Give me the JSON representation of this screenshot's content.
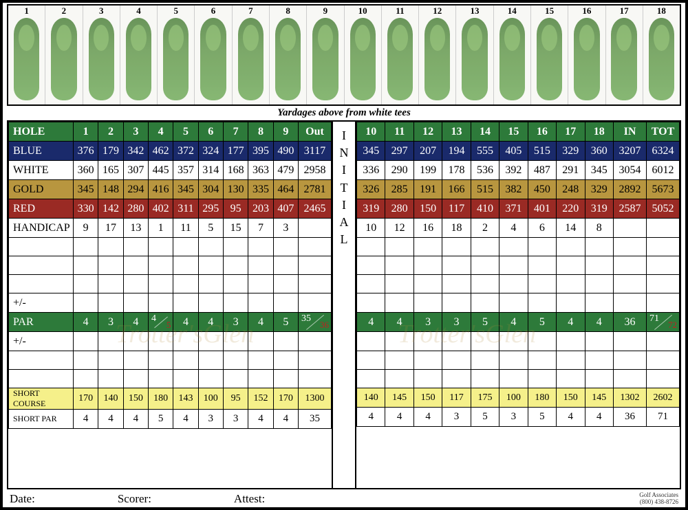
{
  "caption": "Yardages above from white tees",
  "initial_label": "INITIAL",
  "colors": {
    "green": "#2d7a3a",
    "blue": "#1a2a6b",
    "gold": "#b8963f",
    "red": "#9a2a24",
    "yellow": "#f5f08a",
    "black": "#000000",
    "white": "#ffffff",
    "split_red": "#c02020"
  },
  "front": {
    "columns": [
      "1",
      "2",
      "3",
      "4",
      "5",
      "6",
      "7",
      "8",
      "9",
      "Out"
    ],
    "rows": {
      "hole": {
        "label": "HOLE"
      },
      "blue": {
        "label": "BLUE",
        "vals": [
          "376",
          "179",
          "342",
          "462",
          "372",
          "324",
          "177",
          "395",
          "490",
          "3117"
        ]
      },
      "white": {
        "label": "WHITE",
        "vals": [
          "360",
          "165",
          "307",
          "445",
          "357",
          "314",
          "168",
          "363",
          "479",
          "2958"
        ]
      },
      "gold": {
        "label": "GOLD",
        "vals": [
          "345",
          "148",
          "294",
          "416",
          "345",
          "304",
          "130",
          "335",
          "464",
          "2781"
        ]
      },
      "red": {
        "label": "RED",
        "vals": [
          "330",
          "142",
          "280",
          "402",
          "311",
          "295",
          "95",
          "203",
          "407",
          "2465"
        ]
      },
      "hdcp": {
        "label": "HANDICAP",
        "vals": [
          "9",
          "17",
          "13",
          "1",
          "11",
          "5",
          "15",
          "7",
          "3",
          ""
        ]
      },
      "pm": {
        "label": "+/-"
      },
      "par": {
        "label": "PAR",
        "vals": [
          "4",
          "3",
          "4",
          {
            "a": "4",
            "b": "5"
          },
          "4",
          "4",
          "3",
          "4",
          "5",
          {
            "a": "35",
            "b": "36"
          }
        ]
      },
      "short": {
        "label": "SHORT COURSE",
        "vals": [
          "170",
          "140",
          "150",
          "180",
          "143",
          "100",
          "95",
          "152",
          "170",
          "1300"
        ]
      },
      "spar": {
        "label": "SHORT PAR",
        "vals": [
          "4",
          "4",
          "4",
          "5",
          "4",
          "3",
          "3",
          "4",
          "4",
          "35"
        ]
      }
    }
  },
  "back": {
    "columns": [
      "10",
      "11",
      "12",
      "13",
      "14",
      "15",
      "16",
      "17",
      "18",
      "IN",
      "TOT"
    ],
    "rows": {
      "blue": {
        "vals": [
          "345",
          "297",
          "207",
          "194",
          "555",
          "405",
          "515",
          "329",
          "360",
          "3207",
          "6324"
        ]
      },
      "white": {
        "vals": [
          "336",
          "290",
          "199",
          "178",
          "536",
          "392",
          "487",
          "291",
          "345",
          "3054",
          "6012"
        ]
      },
      "gold": {
        "vals": [
          "326",
          "285",
          "191",
          "166",
          "515",
          "382",
          "450",
          "248",
          "329",
          "2892",
          "5673"
        ]
      },
      "red": {
        "vals": [
          "319",
          "280",
          "150",
          "117",
          "410",
          "371",
          "401",
          "220",
          "319",
          "2587",
          "5052"
        ]
      },
      "hdcp": {
        "vals": [
          "10",
          "12",
          "16",
          "18",
          "2",
          "4",
          "6",
          "14",
          "8",
          "",
          ""
        ]
      },
      "par": {
        "vals": [
          "4",
          "4",
          "3",
          "3",
          "5",
          "4",
          "5",
          "4",
          "4",
          "36",
          {
            "a": "71",
            "b": "72"
          }
        ]
      },
      "short": {
        "vals": [
          "140",
          "145",
          "150",
          "117",
          "175",
          "100",
          "180",
          "150",
          "145",
          "1302",
          "2602"
        ]
      },
      "spar": {
        "vals": [
          "4",
          "4",
          "4",
          "3",
          "5",
          "3",
          "5",
          "4",
          "4",
          "36",
          "71"
        ]
      }
    }
  },
  "footer": {
    "date": "Date:",
    "scorer": "Scorer:",
    "attest": "Attest:",
    "credit1": "Golf Associates",
    "credit2": "(800) 438-8726"
  },
  "watermark": "Trotter'sGlen"
}
